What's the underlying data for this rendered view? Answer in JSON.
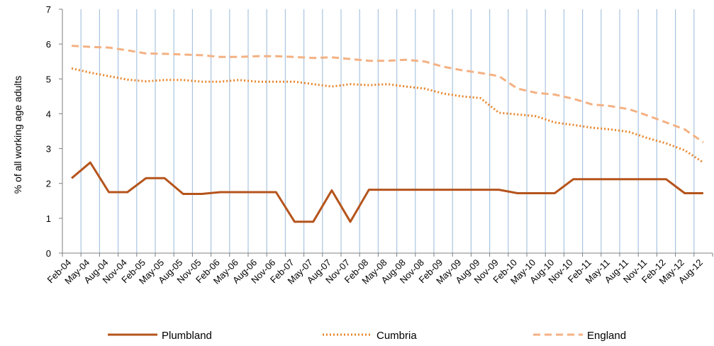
{
  "chart_data": {
    "type": "line",
    "ylabel": "% of all working age adults",
    "ylim": [
      0,
      7
    ],
    "yticks": [
      0,
      1,
      2,
      3,
      4,
      5,
      6,
      7
    ],
    "grid": "vertical",
    "legend": "bottom",
    "categories": [
      "Feb-04",
      "May-04",
      "Aug-04",
      "Nov-04",
      "Feb-05",
      "May-05",
      "Aug-05",
      "Nov-05",
      "Feb-06",
      "May-06",
      "Aug-06",
      "Nov-06",
      "Feb-07",
      "May-07",
      "Aug-07",
      "Nov-07",
      "Feb-08",
      "May-08",
      "Aug-08",
      "Nov-08",
      "Feb-09",
      "May-09",
      "Aug-09",
      "Nov-09",
      "Feb-10",
      "May-10",
      "Aug-10",
      "Nov-10",
      "Feb-11",
      "May-11",
      "Aug-11",
      "Nov-11",
      "Feb-12",
      "May-12",
      "Aug-12"
    ],
    "series": [
      {
        "name": "Plumbland",
        "color": "#b5541c",
        "style": "solid",
        "values": [
          2.15,
          2.6,
          1.75,
          1.75,
          2.15,
          2.15,
          1.7,
          1.7,
          1.75,
          1.75,
          1.75,
          1.75,
          0.9,
          0.9,
          1.8,
          0.9,
          1.82,
          1.82,
          1.82,
          1.82,
          1.82,
          1.82,
          1.82,
          1.82,
          1.72,
          1.72,
          1.72,
          2.12,
          2.12,
          2.12,
          2.12,
          2.12,
          2.12,
          1.72,
          1.72
        ]
      },
      {
        "name": "Cumbria",
        "color": "#e8862c",
        "style": "dotted",
        "values": [
          5.3,
          5.18,
          5.08,
          4.98,
          4.93,
          4.97,
          4.97,
          4.92,
          4.92,
          4.97,
          4.92,
          4.92,
          4.92,
          4.85,
          4.78,
          4.85,
          4.82,
          4.85,
          4.78,
          4.72,
          4.58,
          4.5,
          4.45,
          4.03,
          3.98,
          3.93,
          3.75,
          3.68,
          3.6,
          3.55,
          3.48,
          3.3,
          3.15,
          2.95,
          2.6
        ]
      },
      {
        "name": "England",
        "color": "#f4b183",
        "style": "dashed",
        "values": [
          5.95,
          5.92,
          5.9,
          5.82,
          5.73,
          5.72,
          5.7,
          5.68,
          5.63,
          5.63,
          5.65,
          5.65,
          5.63,
          5.6,
          5.62,
          5.57,
          5.52,
          5.52,
          5.55,
          5.5,
          5.35,
          5.25,
          5.17,
          5.08,
          4.72,
          4.6,
          4.55,
          4.43,
          4.27,
          4.22,
          4.13,
          3.95,
          3.75,
          3.55,
          3.18
        ]
      }
    ]
  }
}
